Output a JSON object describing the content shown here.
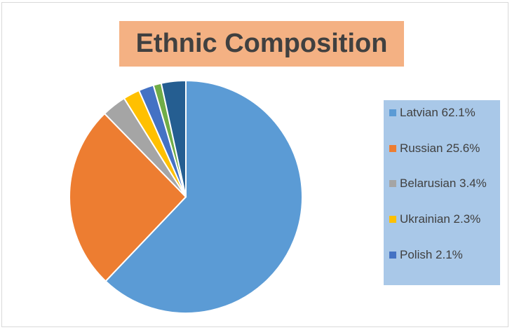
{
  "chart_data": {
    "type": "pie",
    "title": "Ethnic Composition",
    "slices": [
      {
        "label": "Latvian",
        "value": 62.1,
        "color": "#5b9bd5",
        "legend": "Latvian 62.1%"
      },
      {
        "label": "Russian",
        "value": 25.6,
        "color": "#ed7d31",
        "legend": "Russian 25.6%"
      },
      {
        "label": "Belarusian",
        "value": 3.4,
        "color": "#a5a5a5",
        "legend": "Belarusian 3.4%"
      },
      {
        "label": "Ukrainian",
        "value": 2.3,
        "color": "#ffc000",
        "legend": "Ukrainian 2.3%"
      },
      {
        "label": "Polish",
        "value": 2.1,
        "color": "#4472c4",
        "legend": "Polish 2.1%"
      },
      {
        "label": "",
        "value": 1.1,
        "color": "#70ad47"
      },
      {
        "label": "",
        "value": 3.4,
        "color": "#255e91"
      }
    ],
    "legend_position": "right",
    "visible_legend_entries": 5
  }
}
